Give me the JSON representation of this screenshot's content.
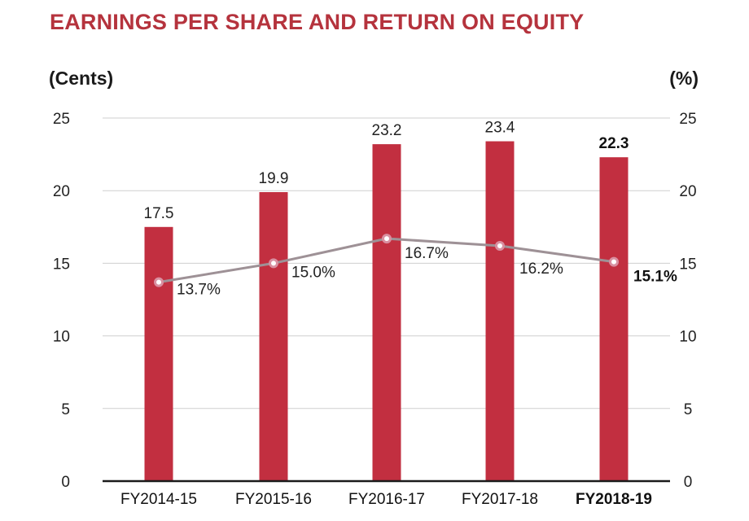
{
  "chart_data": {
    "type": "bar",
    "title": "EARNINGS PER SHARE AND RETURN ON EQUITY",
    "ylabel": "(Cents)",
    "y2label": "(%)",
    "ylim": [
      0,
      25
    ],
    "y2lim": [
      0,
      25
    ],
    "yticks": [
      0,
      5,
      10,
      15,
      20,
      25
    ],
    "grid": true,
    "categories": [
      "FY2014-15",
      "FY2015-16",
      "FY2016-17",
      "FY2017-18",
      "FY2018-19"
    ],
    "highlight_index": 4,
    "series": [
      {
        "kind": "bar",
        "axis": "left",
        "values": [
          17.5,
          19.9,
          23.2,
          23.4,
          22.3
        ],
        "labels": [
          "17.5",
          "19.9",
          "23.2",
          "23.4",
          "22.3"
        ],
        "color": "#c22f40"
      },
      {
        "kind": "line",
        "axis": "right",
        "values": [
          13.7,
          15.0,
          16.7,
          16.2,
          15.1
        ],
        "labels": [
          "13.7%",
          "15.0%",
          "16.7%",
          "16.2%",
          "15.1%"
        ],
        "color": "#9e9196"
      }
    ]
  }
}
